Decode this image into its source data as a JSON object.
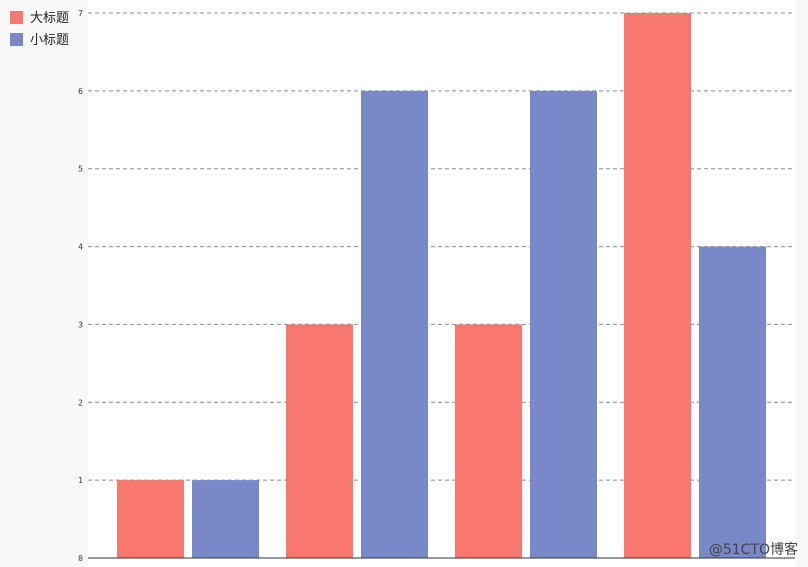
{
  "legend": {
    "items": [
      {
        "label": "大标题",
        "color": "#f8776f"
      },
      {
        "label": "小标题",
        "color": "#7888c9"
      }
    ]
  },
  "watermark": {
    "text": "@51CTO博客"
  },
  "chart_data": {
    "type": "bar",
    "title": "",
    "xlabel": "",
    "ylabel": "",
    "ylim": [
      0,
      7
    ],
    "yticks": [
      "0",
      "1",
      "2",
      "3",
      "4",
      "5",
      "6",
      "7"
    ],
    "grid": true,
    "legend_placement": "top-left",
    "categories": [
      "",
      "",
      "",
      ""
    ],
    "series": [
      {
        "name": "大标题",
        "color": "#f8776f",
        "values": [
          1,
          3,
          3,
          7
        ]
      },
      {
        "name": "小标题",
        "color": "#7888c9",
        "values": [
          1,
          6,
          6,
          4
        ]
      }
    ]
  }
}
